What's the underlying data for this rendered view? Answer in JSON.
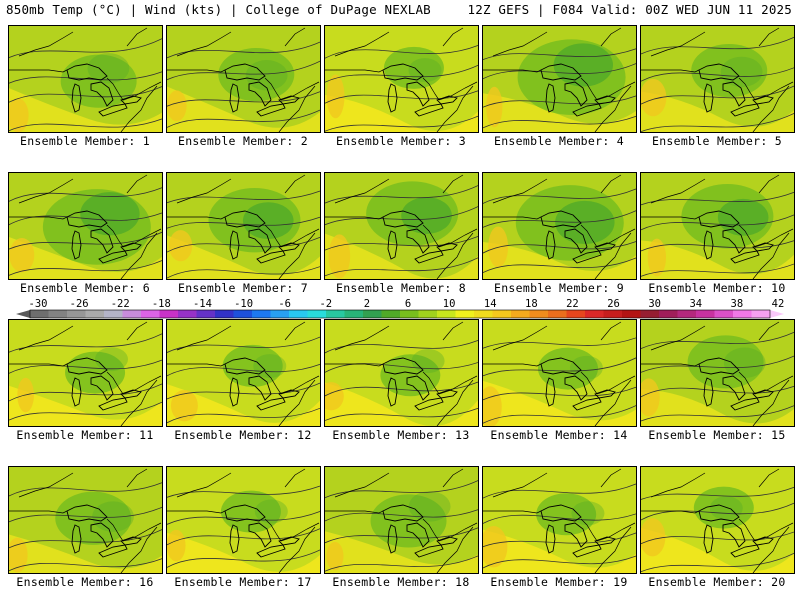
{
  "header": {
    "left": "850mb Temp (°C) | Wind (kts) | College of DuPage NEXLAB",
    "right": "12Z GEFS | F084 Valid: 00Z WED JUN 11 2025"
  },
  "label_prefix": "Ensemble Member: ",
  "members": [
    {
      "n": "1",
      "tint": 10
    },
    {
      "n": "2",
      "tint": 10
    },
    {
      "n": "3",
      "tint": 11
    },
    {
      "n": "4",
      "tint": 8
    },
    {
      "n": "5",
      "tint": 10
    },
    {
      "n": "6",
      "tint": 8
    },
    {
      "n": "7",
      "tint": 9
    },
    {
      "n": "8",
      "tint": 9
    },
    {
      "n": "9",
      "tint": 8
    },
    {
      "n": "10",
      "tint": 9
    },
    {
      "n": "11",
      "tint": 11
    },
    {
      "n": "12",
      "tint": 11
    },
    {
      "n": "13",
      "tint": 11
    },
    {
      "n": "14",
      "tint": 11
    },
    {
      "n": "15",
      "tint": 10
    },
    {
      "n": "16",
      "tint": 10
    },
    {
      "n": "17",
      "tint": 11
    },
    {
      "n": "18",
      "tint": 10
    },
    {
      "n": "19",
      "tint": 11
    },
    {
      "n": "20",
      "tint": 11
    }
  ],
  "colorbar": {
    "ticks": [
      "-30",
      "-26",
      "-22",
      "-18",
      "-14",
      "-10",
      "-6",
      "-2",
      "2",
      "6",
      "10",
      "14",
      "18",
      "22",
      "26",
      "30",
      "34",
      "38",
      "42"
    ],
    "colors": [
      "#6e6e6e",
      "#828282",
      "#969696",
      "#aaaaaa",
      "#b4b4c8",
      "#c88cdc",
      "#dc64e6",
      "#c832c8",
      "#9632c8",
      "#6432c8",
      "#3232c8",
      "#1e50dc",
      "#1e78f0",
      "#28a0f0",
      "#28c8f0",
      "#28dcdc",
      "#28c8a0",
      "#28b478",
      "#32a050",
      "#50aa28",
      "#78be1e",
      "#a0d21e",
      "#c8e61e",
      "#f0f01e",
      "#f0dc1e",
      "#f5c81e",
      "#f5aa1e",
      "#f08c1e",
      "#eb6e1e",
      "#e6461e",
      "#dc2828",
      "#c81e1e",
      "#b41414",
      "#961e32",
      "#a01e5a",
      "#b4287d",
      "#c832a0",
      "#dc50c8",
      "#f078e6",
      "#f5a0f0"
    ]
  }
}
